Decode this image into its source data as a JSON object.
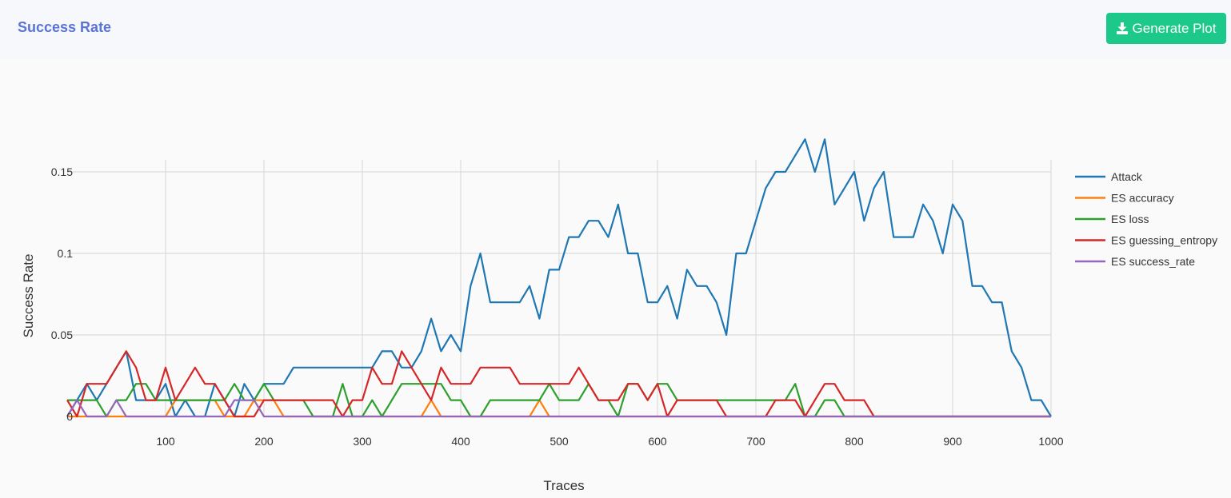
{
  "header": {
    "title": "Success Rate",
    "button_label": "Generate Plot",
    "button_icon": "download-icon",
    "title_color": "#5a73d6",
    "button_color": "#1cc88a"
  },
  "chart_data": {
    "type": "line",
    "title": "",
    "xlabel": "Traces",
    "ylabel": "Success Rate",
    "xlim": [
      0,
      1000
    ],
    "ylim": [
      0,
      0.175
    ],
    "xticks": [
      100,
      200,
      300,
      400,
      500,
      600,
      700,
      800,
      900,
      1000
    ],
    "yticks": [
      0,
      0.05,
      0.1,
      0.15
    ],
    "ytick_labels": [
      "0",
      "0.05",
      "0.1",
      "0.15"
    ],
    "grid": true,
    "legend_position": "right",
    "x": [
      0,
      10,
      20,
      30,
      40,
      50,
      60,
      70,
      80,
      90,
      100,
      110,
      120,
      130,
      140,
      150,
      160,
      170,
      180,
      190,
      200,
      210,
      220,
      230,
      240,
      250,
      260,
      270,
      280,
      290,
      300,
      310,
      320,
      330,
      340,
      350,
      360,
      370,
      380,
      390,
      400,
      410,
      420,
      430,
      440,
      450,
      460,
      470,
      480,
      490,
      500,
      510,
      520,
      530,
      540,
      550,
      560,
      570,
      580,
      590,
      600,
      610,
      620,
      630,
      640,
      650,
      660,
      670,
      680,
      690,
      700,
      710,
      720,
      730,
      740,
      750,
      760,
      770,
      780,
      790,
      800,
      810,
      820,
      830,
      840,
      850,
      860,
      870,
      880,
      890,
      900,
      910,
      920,
      930,
      940,
      950,
      960,
      970,
      980,
      990,
      1000
    ],
    "series": [
      {
        "name": "Attack",
        "color": "#1f77b4",
        "values": [
          0,
          0.01,
          0.02,
          0.01,
          0.02,
          0.03,
          0.04,
          0.01,
          0.01,
          0.01,
          0.02,
          0,
          0.01,
          0,
          0,
          0.02,
          0.01,
          0,
          0.02,
          0.01,
          0.02,
          0.02,
          0.02,
          0.03,
          0.03,
          0.03,
          0.03,
          0.03,
          0.03,
          0.03,
          0.03,
          0.03,
          0.04,
          0.04,
          0.03,
          0.03,
          0.04,
          0.06,
          0.04,
          0.05,
          0.04,
          0.08,
          0.1,
          0.07,
          0.07,
          0.07,
          0.07,
          0.08,
          0.06,
          0.09,
          0.09,
          0.11,
          0.11,
          0.12,
          0.12,
          0.11,
          0.13,
          0.1,
          0.1,
          0.07,
          0.07,
          0.08,
          0.06,
          0.09,
          0.08,
          0.08,
          0.07,
          0.05,
          0.1,
          0.1,
          0.12,
          0.14,
          0.15,
          0.15,
          0.16,
          0.17,
          0.15,
          0.17,
          0.13,
          0.14,
          0.15,
          0.12,
          0.14,
          0.15,
          0.11,
          0.11,
          0.11,
          0.13,
          0.12,
          0.1,
          0.13,
          0.12,
          0.08,
          0.08,
          0.07,
          0.07,
          0.04,
          0.03,
          0.01,
          0.01,
          0
        ]
      },
      {
        "name": "ES accuracy",
        "color": "#ff7f0e",
        "values": [
          0,
          0,
          0,
          0,
          0,
          0,
          0,
          0,
          0,
          0,
          0,
          0.01,
          0.01,
          0.01,
          0.01,
          0.01,
          0,
          0,
          0,
          0.01,
          0.01,
          0.01,
          0,
          0,
          0,
          0,
          0,
          0,
          0,
          0,
          0,
          0,
          0,
          0,
          0,
          0,
          0,
          0.01,
          0,
          0,
          0,
          0,
          0,
          0,
          0,
          0,
          0,
          0,
          0.01,
          0,
          0,
          0,
          0,
          0,
          0,
          0,
          0,
          0,
          0,
          0,
          0,
          0,
          0,
          0,
          0,
          0,
          0,
          0,
          0,
          0,
          0,
          0,
          0,
          0,
          0,
          0,
          0,
          0,
          0,
          0,
          0,
          0,
          0,
          0,
          0,
          0,
          0,
          0,
          0,
          0,
          0,
          0,
          0,
          0,
          0,
          0,
          0,
          0,
          0,
          0,
          0
        ]
      },
      {
        "name": "ES loss",
        "color": "#2ca02c",
        "values": [
          0.01,
          0.01,
          0.01,
          0.01,
          0,
          0.01,
          0.01,
          0.02,
          0.02,
          0.01,
          0.01,
          0.01,
          0.01,
          0.01,
          0.01,
          0.01,
          0.01,
          0.02,
          0.01,
          0.01,
          0.02,
          0.01,
          0.01,
          0.01,
          0.01,
          0,
          0,
          0,
          0.02,
          0,
          0,
          0.01,
          0,
          0.01,
          0.02,
          0.02,
          0.02,
          0.02,
          0.02,
          0.01,
          0.01,
          0,
          0,
          0.01,
          0.01,
          0.01,
          0.01,
          0.01,
          0.01,
          0.02,
          0.01,
          0.01,
          0.01,
          0.02,
          0.01,
          0.01,
          0,
          0.02,
          0.02,
          0.01,
          0.02,
          0.02,
          0.01,
          0.01,
          0.01,
          0.01,
          0.01,
          0.01,
          0.01,
          0.01,
          0.01,
          0.01,
          0.01,
          0.01,
          0.02,
          0,
          0,
          0.01,
          0.01,
          0,
          0,
          0,
          0,
          0,
          0,
          0,
          0,
          0,
          0,
          0,
          0,
          0,
          0,
          0,
          0,
          0,
          0,
          0,
          0,
          0,
          0
        ]
      },
      {
        "name": "ES guessing_entropy",
        "color": "#d62728",
        "values": [
          0.01,
          0,
          0.02,
          0.02,
          0.02,
          0.03,
          0.04,
          0.03,
          0.01,
          0.01,
          0.03,
          0.01,
          0.02,
          0.03,
          0.02,
          0.02,
          0.01,
          0,
          0,
          0,
          0.01,
          0.01,
          0.01,
          0.01,
          0.01,
          0.01,
          0.01,
          0.01,
          0,
          0.01,
          0.01,
          0.03,
          0.02,
          0.02,
          0.04,
          0.03,
          0.02,
          0.01,
          0.03,
          0.02,
          0.02,
          0.02,
          0.03,
          0.03,
          0.03,
          0.03,
          0.02,
          0.02,
          0.02,
          0.02,
          0.02,
          0.02,
          0.03,
          0.02,
          0.01,
          0.01,
          0.01,
          0.02,
          0.02,
          0.01,
          0.02,
          0,
          0.01,
          0.01,
          0.01,
          0.01,
          0.01,
          0,
          0,
          0,
          0,
          0,
          0.01,
          0.01,
          0.01,
          0,
          0.01,
          0.02,
          0.02,
          0.01,
          0.01,
          0.01,
          0,
          0,
          0,
          0,
          0,
          0,
          0,
          0,
          0,
          0,
          0,
          0,
          0,
          0,
          0,
          0,
          0,
          0,
          0
        ]
      },
      {
        "name": "ES success_rate",
        "color": "#9467bd",
        "values": [
          0,
          0.01,
          0,
          0,
          0,
          0.01,
          0,
          0,
          0,
          0,
          0,
          0,
          0,
          0,
          0,
          0,
          0,
          0.01,
          0.01,
          0.01,
          0,
          0,
          0,
          0,
          0,
          0,
          0,
          0,
          0,
          0,
          0,
          0,
          0,
          0,
          0,
          0,
          0,
          0,
          0,
          0,
          0,
          0,
          0,
          0,
          0,
          0,
          0,
          0,
          0,
          0,
          0,
          0,
          0,
          0,
          0,
          0,
          0,
          0,
          0,
          0,
          0,
          0,
          0,
          0,
          0,
          0,
          0,
          0,
          0,
          0,
          0,
          0,
          0,
          0,
          0,
          0,
          0,
          0,
          0,
          0,
          0,
          0,
          0,
          0,
          0,
          0,
          0,
          0,
          0,
          0,
          0,
          0,
          0,
          0,
          0,
          0,
          0,
          0,
          0,
          0,
          0
        ]
      }
    ]
  }
}
